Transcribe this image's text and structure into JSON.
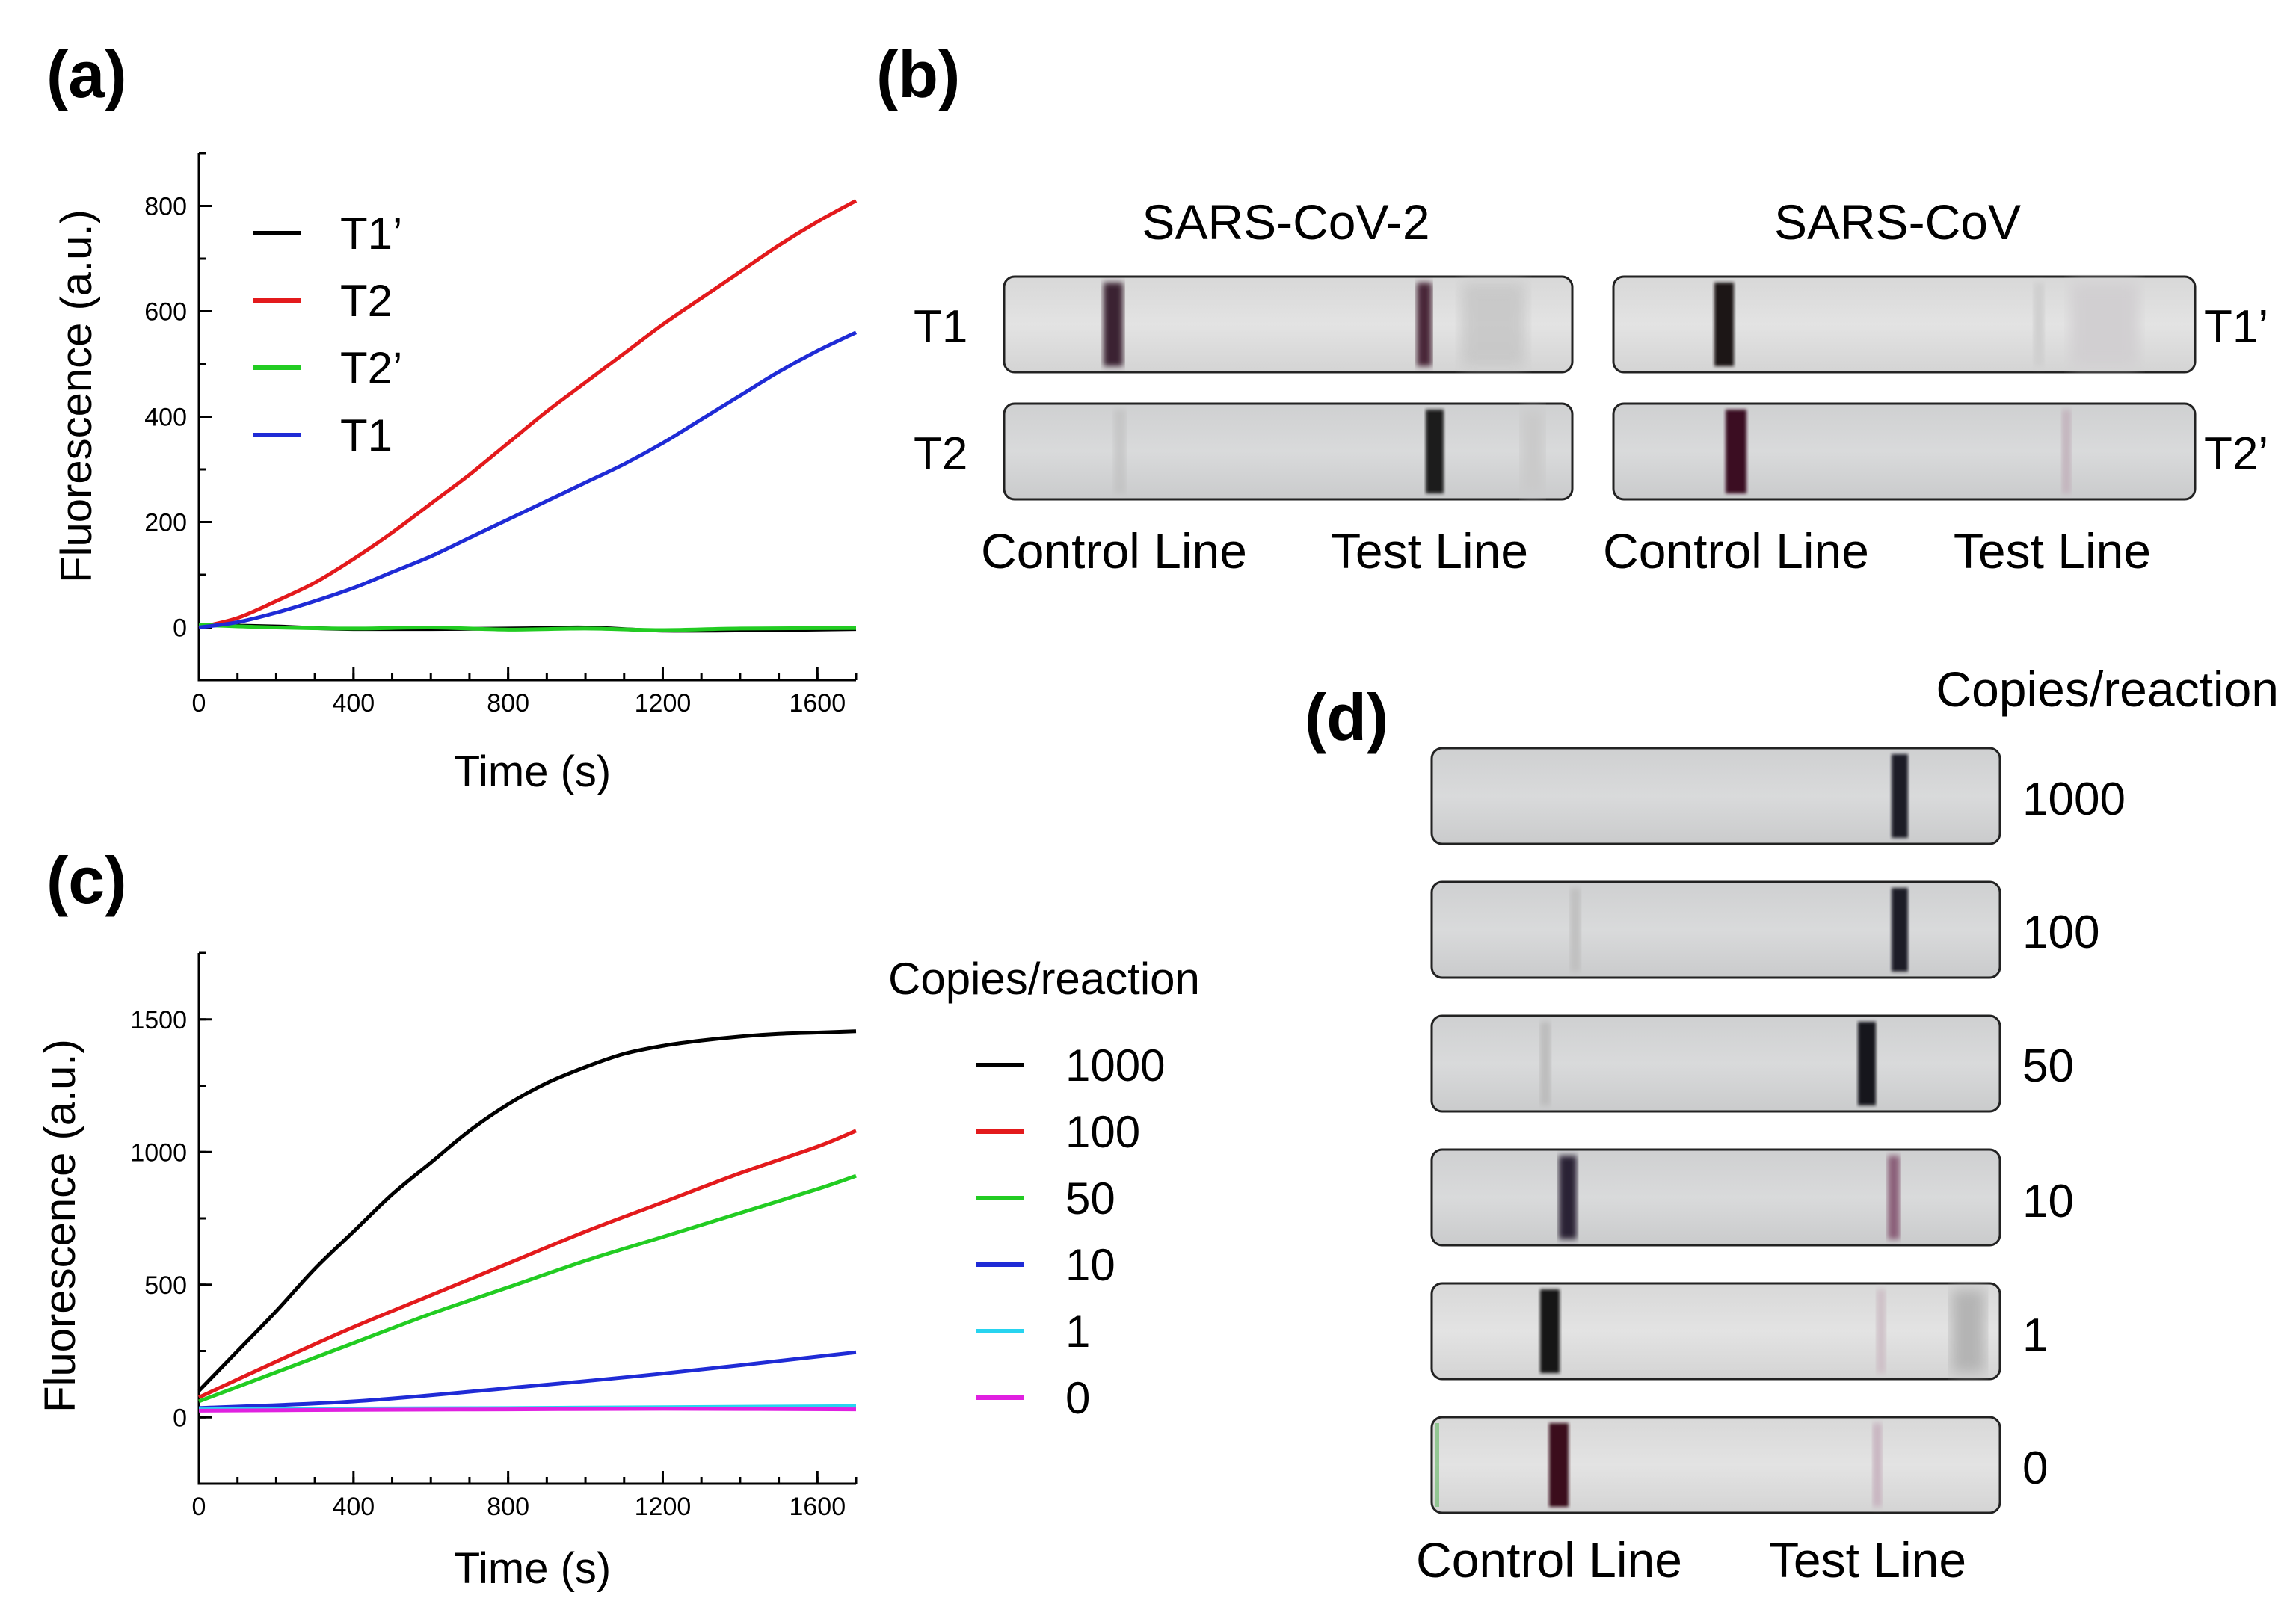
{
  "panels": {
    "a": "(a)",
    "b": "(b)",
    "c": "(c)",
    "d": "(d)"
  },
  "chart_data": [
    {
      "id": "a",
      "type": "line",
      "xlabel": "Time (s)",
      "ylabel": "Fluorescence (a.u.)",
      "xlim": [
        0,
        1700
      ],
      "ylim": [
        -100,
        900
      ],
      "xticks": [
        0,
        400,
        800,
        1200,
        1600
      ],
      "yticks": [
        0,
        200,
        400,
        600,
        800
      ],
      "series": [
        {
          "name": "T1’",
          "color": "#000000",
          "points": [
            [
              0,
              5
            ],
            [
              200,
              2
            ],
            [
              400,
              -3
            ],
            [
              800,
              -2
            ],
            [
              1000,
              0
            ],
            [
              1200,
              -6
            ],
            [
              1500,
              -5
            ],
            [
              1700,
              -3
            ]
          ]
        },
        {
          "name": "T2",
          "color": "#e31a1c",
          "points": [
            [
              0,
              0
            ],
            [
              100,
              18
            ],
            [
              200,
              50
            ],
            [
              300,
              85
            ],
            [
              400,
              130
            ],
            [
              500,
              180
            ],
            [
              600,
              235
            ],
            [
              700,
              290
            ],
            [
              800,
              350
            ],
            [
              900,
              410
            ],
            [
              1000,
              465
            ],
            [
              1100,
              520
            ],
            [
              1200,
              575
            ],
            [
              1300,
              625
            ],
            [
              1400,
              675
            ],
            [
              1500,
              725
            ],
            [
              1600,
              770
            ],
            [
              1700,
              810
            ]
          ]
        },
        {
          "name": "T2’",
          "color": "#22cc22",
          "points": [
            [
              0,
              5
            ],
            [
              200,
              0
            ],
            [
              400,
              -2
            ],
            [
              600,
              0
            ],
            [
              800,
              -4
            ],
            [
              1000,
              -2
            ],
            [
              1200,
              -5
            ],
            [
              1400,
              -2
            ],
            [
              1700,
              -1
            ]
          ]
        },
        {
          "name": "T1",
          "color": "#1f2bd6",
          "points": [
            [
              0,
              0
            ],
            [
              100,
              10
            ],
            [
              200,
              28
            ],
            [
              300,
              50
            ],
            [
              400,
              75
            ],
            [
              500,
              105
            ],
            [
              600,
              135
            ],
            [
              700,
              170
            ],
            [
              800,
              205
            ],
            [
              900,
              240
            ],
            [
              1000,
              275
            ],
            [
              1100,
              310
            ],
            [
              1200,
              350
            ],
            [
              1300,
              395
            ],
            [
              1400,
              440
            ],
            [
              1500,
              485
            ],
            [
              1600,
              525
            ],
            [
              1700,
              560
            ]
          ]
        }
      ]
    },
    {
      "id": "c",
      "type": "line",
      "xlabel": "Time (s)",
      "ylabel": "Fluorescence (a.u.)",
      "xlim": [
        0,
        1700
      ],
      "ylim": [
        -250,
        1750
      ],
      "xticks": [
        0,
        400,
        800,
        1200,
        1600
      ],
      "yticks": [
        0,
        500,
        1000,
        1500
      ],
      "legend_title": "Copies/reaction",
      "series": [
        {
          "name": "1000",
          "color": "#000000",
          "points": [
            [
              0,
              100
            ],
            [
              100,
              250
            ],
            [
              200,
              400
            ],
            [
              300,
              560
            ],
            [
              400,
              700
            ],
            [
              500,
              840
            ],
            [
              600,
              960
            ],
            [
              700,
              1080
            ],
            [
              800,
              1180
            ],
            [
              900,
              1260
            ],
            [
              1000,
              1320
            ],
            [
              1100,
              1370
            ],
            [
              1200,
              1400
            ],
            [
              1300,
              1420
            ],
            [
              1400,
              1435
            ],
            [
              1500,
              1445
            ],
            [
              1600,
              1450
            ],
            [
              1700,
              1455
            ]
          ]
        },
        {
          "name": "100",
          "color": "#e31a1c",
          "points": [
            [
              0,
              75
            ],
            [
              200,
              210
            ],
            [
              400,
              340
            ],
            [
              600,
              460
            ],
            [
              800,
              580
            ],
            [
              1000,
              700
            ],
            [
              1200,
              810
            ],
            [
              1400,
              920
            ],
            [
              1600,
              1020
            ],
            [
              1700,
              1080
            ]
          ]
        },
        {
          "name": "50",
          "color": "#22cc22",
          "points": [
            [
              0,
              60
            ],
            [
              200,
              170
            ],
            [
              400,
              280
            ],
            [
              600,
              390
            ],
            [
              800,
              490
            ],
            [
              1000,
              590
            ],
            [
              1200,
              680
            ],
            [
              1400,
              770
            ],
            [
              1600,
              860
            ],
            [
              1700,
              910
            ]
          ]
        },
        {
          "name": "10",
          "color": "#1f2bd6",
          "points": [
            [
              0,
              35
            ],
            [
              400,
              60
            ],
            [
              800,
              110
            ],
            [
              1200,
              165
            ],
            [
              1700,
              245
            ]
          ]
        },
        {
          "name": "1",
          "color": "#27d4f0",
          "points": [
            [
              0,
              30
            ],
            [
              400,
              33
            ],
            [
              800,
              35
            ],
            [
              1200,
              38
            ],
            [
              1700,
              42
            ]
          ]
        },
        {
          "name": "0",
          "color": "#e020e0",
          "points": [
            [
              0,
              25
            ],
            [
              400,
              28
            ],
            [
              800,
              30
            ],
            [
              1200,
              32
            ],
            [
              1700,
              30
            ]
          ]
        }
      ]
    }
  ],
  "strips_b": {
    "columns": [
      "SARS-CoV-2",
      "SARS-CoV"
    ],
    "left_rows": [
      "T1",
      "T2"
    ],
    "right_rows": [
      "T1’",
      "T2’"
    ],
    "bottom_labels": [
      "Control Line",
      "Test Line",
      "Control Line",
      "Test Line"
    ]
  },
  "strips_d": {
    "title": "Copies/reaction",
    "rows": [
      "1000",
      "100",
      "50",
      "10",
      "1",
      "0"
    ],
    "bottom_labels": [
      "Control Line",
      "Test Line"
    ]
  }
}
